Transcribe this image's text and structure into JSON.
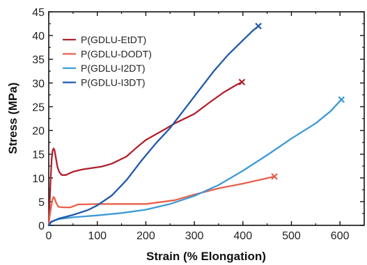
{
  "chart_data": {
    "type": "line",
    "title": "",
    "xlabel": "Strain (% Elongation)",
    "ylabel": "Stress (MPa)",
    "xlim": [
      0,
      650
    ],
    "ylim": [
      0,
      45
    ],
    "xticks": [
      0,
      100,
      200,
      300,
      400,
      500,
      600
    ],
    "yticks": [
      0,
      5,
      10,
      15,
      20,
      25,
      30,
      35,
      40,
      45
    ],
    "grid": false,
    "legend": "top-left",
    "end_marker": "x",
    "series": [
      {
        "name": "P(GDLU-EtDT)",
        "color": "#b0202c",
        "points": [
          [
            0,
            0
          ],
          [
            2,
            5
          ],
          [
            4,
            10
          ],
          [
            6,
            14
          ],
          [
            8,
            15.8
          ],
          [
            10,
            16.2
          ],
          [
            12,
            15.8
          ],
          [
            15,
            14
          ],
          [
            18,
            12.3
          ],
          [
            22,
            11.2
          ],
          [
            27,
            10.6
          ],
          [
            35,
            10.6
          ],
          [
            50,
            11.3
          ],
          [
            70,
            11.8
          ],
          [
            90,
            12.1
          ],
          [
            110,
            12.4
          ],
          [
            130,
            13
          ],
          [
            160,
            14.5
          ],
          [
            180,
            16.3
          ],
          [
            200,
            18
          ],
          [
            240,
            20.3
          ],
          [
            260,
            21.5
          ],
          [
            300,
            23.5
          ],
          [
            330,
            25.8
          ],
          [
            360,
            28
          ],
          [
            385,
            29.5
          ],
          [
            398,
            30.2
          ]
        ]
      },
      {
        "name": "P(GDLU-DODT)",
        "color": "#e8604c",
        "points": [
          [
            0,
            0
          ],
          [
            2,
            2
          ],
          [
            5,
            4
          ],
          [
            8,
            5.5
          ],
          [
            10,
            6
          ],
          [
            12,
            5.7
          ],
          [
            15,
            4.8
          ],
          [
            20,
            3.9
          ],
          [
            30,
            3.8
          ],
          [
            45,
            3.8
          ],
          [
            60,
            4.4
          ],
          [
            100,
            4.5
          ],
          [
            200,
            4.5
          ],
          [
            260,
            5.3
          ],
          [
            300,
            6.5
          ],
          [
            350,
            7.8
          ],
          [
            400,
            8.8
          ],
          [
            440,
            9.7
          ],
          [
            465,
            10.3
          ]
        ]
      },
      {
        "name": "P(GDLU-I2DT)",
        "color": "#3a9ad6",
        "points": [
          [
            0,
            0
          ],
          [
            5,
            0.8
          ],
          [
            20,
            1.3
          ],
          [
            50,
            1.7
          ],
          [
            100,
            2.1
          ],
          [
            150,
            2.6
          ],
          [
            200,
            3.3
          ],
          [
            250,
            4.5
          ],
          [
            300,
            6.2
          ],
          [
            350,
            8.5
          ],
          [
            400,
            11.5
          ],
          [
            450,
            14.8
          ],
          [
            500,
            18.3
          ],
          [
            550,
            21.5
          ],
          [
            580,
            24
          ],
          [
            603,
            26.5
          ]
        ]
      },
      {
        "name": "P(GDLU-I3DT)",
        "color": "#1f58a8",
        "points": [
          [
            0,
            0
          ],
          [
            5,
            0.7
          ],
          [
            20,
            1.4
          ],
          [
            50,
            2.2
          ],
          [
            80,
            3.2
          ],
          [
            100,
            4.2
          ],
          [
            130,
            6.3
          ],
          [
            160,
            9.5
          ],
          [
            190,
            13.5
          ],
          [
            220,
            17.2
          ],
          [
            250,
            20.5
          ],
          [
            280,
            24.5
          ],
          [
            310,
            28.5
          ],
          [
            340,
            32.5
          ],
          [
            370,
            36
          ],
          [
            400,
            39
          ],
          [
            420,
            41
          ],
          [
            432,
            42
          ]
        ]
      }
    ]
  }
}
